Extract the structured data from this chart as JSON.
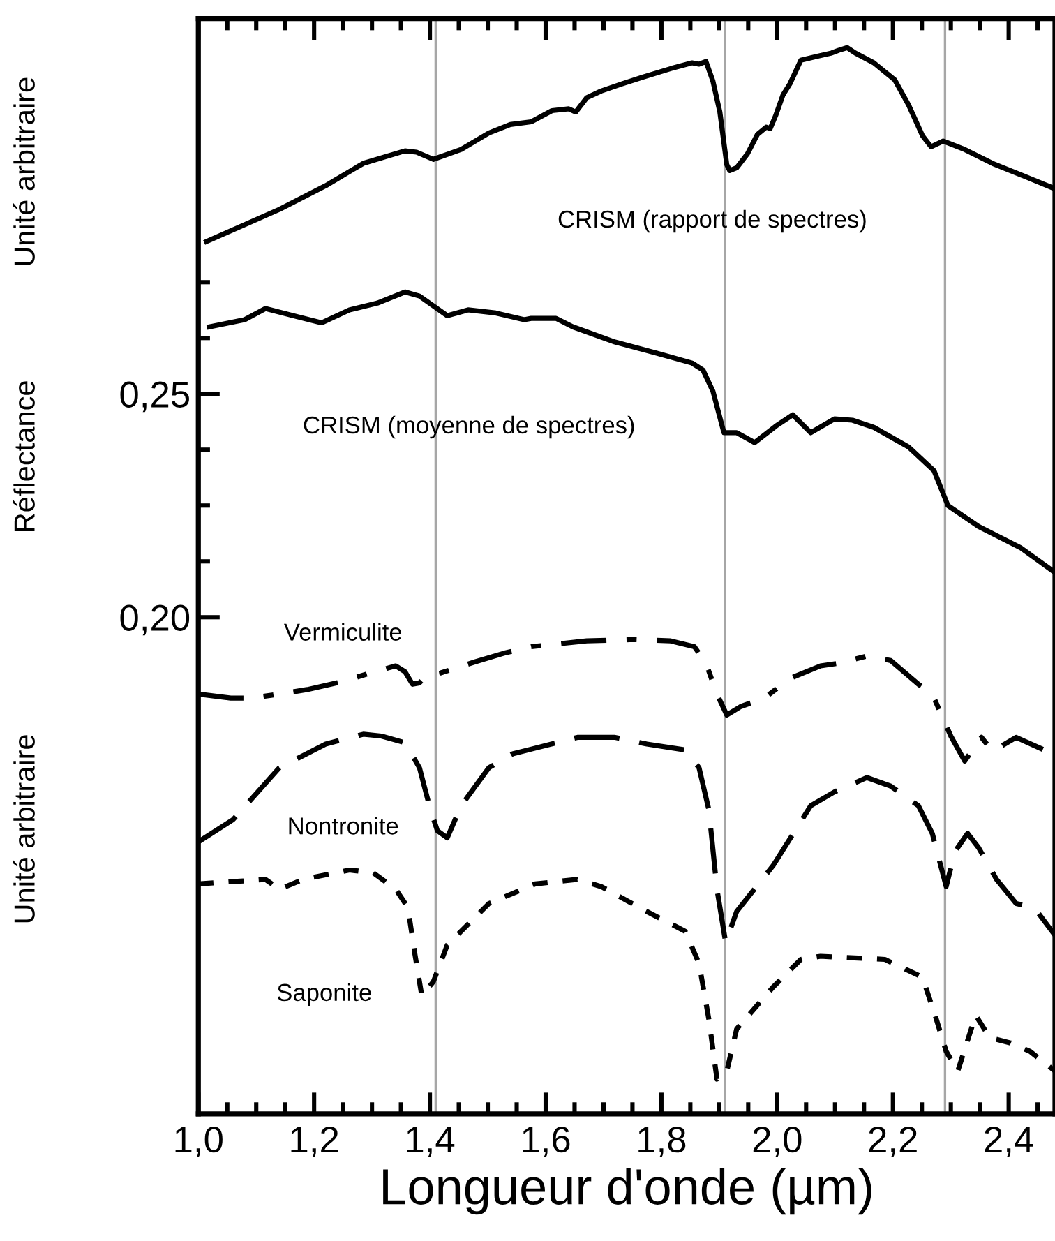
{
  "chart_data": {
    "type": "line",
    "xlabel": "Longueur d'onde (µm)",
    "ylabel": "Réflectance",
    "xlim": [
      1.0,
      2.48
    ],
    "ylim": [
      0.0888,
      0.334
    ],
    "xticks": [
      {
        "value": 1.0,
        "label": "1,0"
      },
      {
        "value": 1.05,
        "label": null
      },
      {
        "value": 1.1,
        "label": null
      },
      {
        "value": 1.15,
        "label": null
      },
      {
        "value": 1.2,
        "label": "1,2"
      },
      {
        "value": 1.25,
        "label": null
      },
      {
        "value": 1.3,
        "label": null
      },
      {
        "value": 1.35,
        "label": null
      },
      {
        "value": 1.4,
        "label": "1,4"
      },
      {
        "value": 1.45,
        "label": null
      },
      {
        "value": 1.5,
        "label": null
      },
      {
        "value": 1.55,
        "label": null
      },
      {
        "value": 1.6,
        "label": "1,6"
      },
      {
        "value": 1.65,
        "label": null
      },
      {
        "value": 1.7,
        "label": null
      },
      {
        "value": 1.75,
        "label": null
      },
      {
        "value": 1.8,
        "label": "1,8"
      },
      {
        "value": 1.85,
        "label": null
      },
      {
        "value": 1.9,
        "label": null
      },
      {
        "value": 1.95,
        "label": null
      },
      {
        "value": 2.0,
        "label": "2,0"
      },
      {
        "value": 2.05,
        "label": null
      },
      {
        "value": 2.1,
        "label": null
      },
      {
        "value": 2.15,
        "label": null
      },
      {
        "value": 2.2,
        "label": "2,2"
      },
      {
        "value": 2.25,
        "label": null
      },
      {
        "value": 2.3,
        "label": null
      },
      {
        "value": 2.35,
        "label": null
      },
      {
        "value": 2.4,
        "label": "2,4"
      },
      {
        "value": 2.45,
        "label": null
      }
    ],
    "yticks": [
      {
        "value": 0.2,
        "label": "0,20"
      },
      {
        "value": 0.2125,
        "label": null
      },
      {
        "value": 0.225,
        "label": null
      },
      {
        "value": 0.2375,
        "label": null
      },
      {
        "value": 0.25,
        "label": "0,25"
      },
      {
        "value": 0.2625,
        "label": null
      },
      {
        "value": 0.275,
        "label": null
      }
    ],
    "grid": false,
    "legend": false,
    "marker": "none",
    "ref_lines": [
      {
        "axis": "x",
        "value": 1.41,
        "color": "#a6a6a6"
      },
      {
        "axis": "x",
        "value": 1.91,
        "color": "#a6a6a6"
      },
      {
        "axis": "x",
        "value": 2.29,
        "color": "#a6a6a6"
      }
    ],
    "series": [
      {
        "name": "CRISM (rapport de spectres)",
        "color": "#000000",
        "line_style": "solid",
        "x": [
          1.014,
          1.14,
          1.22,
          1.285,
          1.357,
          1.377,
          1.406,
          1.454,
          1.502,
          1.539,
          1.575,
          1.611,
          1.64,
          1.652,
          1.671,
          1.696,
          1.732,
          1.768,
          1.816,
          1.853,
          1.865,
          1.877,
          1.889,
          1.901,
          1.913,
          1.918,
          1.93,
          1.949,
          1.966,
          1.981,
          1.988,
          1.998,
          2.01,
          2.022,
          2.041,
          2.07,
          2.094,
          2.106,
          2.121,
          2.135,
          2.167,
          2.203,
          2.227,
          2.251,
          2.266,
          2.287,
          2.324,
          2.372,
          2.42,
          2.48
        ],
        "values": [
          0.2841,
          0.2913,
          0.2966,
          0.3016,
          0.3044,
          0.3041,
          0.3025,
          0.3047,
          0.3084,
          0.3103,
          0.3109,
          0.3134,
          0.3138,
          0.3131,
          0.3163,
          0.3178,
          0.3194,
          0.3209,
          0.3228,
          0.3241,
          0.3238,
          0.3244,
          0.32,
          0.3131,
          0.3013,
          0.3,
          0.3006,
          0.3038,
          0.3081,
          0.3097,
          0.3094,
          0.3125,
          0.3169,
          0.3194,
          0.3247,
          0.3256,
          0.3263,
          0.3269,
          0.3275,
          0.3263,
          0.3241,
          0.3203,
          0.3147,
          0.3078,
          0.3053,
          0.3066,
          0.3047,
          0.3016,
          0.2991,
          0.2959
        ]
      },
      {
        "name": "CRISM (moyenne de spectres)",
        "color": "#000000",
        "line_style": "solid",
        "x": [
          1.019,
          1.08,
          1.116,
          1.164,
          1.213,
          1.261,
          1.309,
          1.357,
          1.382,
          1.43,
          1.466,
          1.514,
          1.563,
          1.575,
          1.618,
          1.647,
          1.72,
          1.792,
          1.853,
          1.872,
          1.889,
          1.908,
          1.93,
          1.961,
          1.998,
          2.027,
          2.058,
          2.099,
          2.13,
          2.167,
          2.227,
          2.271,
          2.295,
          2.348,
          2.42,
          2.48
        ],
        "values": [
          0.265,
          0.2666,
          0.2691,
          0.2675,
          0.2659,
          0.2688,
          0.2703,
          0.2728,
          0.2719,
          0.2675,
          0.2688,
          0.2681,
          0.2666,
          0.2669,
          0.2669,
          0.265,
          0.2616,
          0.2591,
          0.2569,
          0.2553,
          0.2506,
          0.2413,
          0.2413,
          0.2391,
          0.2428,
          0.2453,
          0.2413,
          0.2444,
          0.2441,
          0.2425,
          0.2381,
          0.2328,
          0.225,
          0.2203,
          0.2156,
          0.21
        ]
      },
      {
        "name": "Vermiculite",
        "color": "#000000",
        "line_style": "dashdot",
        "x": [
          1.0,
          1.056,
          1.092,
          1.14,
          1.188,
          1.249,
          1.297,
          1.341,
          1.357,
          1.37,
          1.382,
          1.394,
          1.418,
          1.478,
          1.527,
          1.575,
          1.671,
          1.751,
          1.816,
          1.857,
          1.877,
          1.896,
          1.913,
          1.937,
          1.978,
          2.022,
          2.075,
          2.106,
          2.155,
          2.196,
          2.244,
          2.268,
          2.3,
          2.324,
          2.353,
          2.372,
          2.413,
          2.461,
          2.48
        ],
        "values": [
          0.1828,
          0.1819,
          0.1819,
          0.1828,
          0.1838,
          0.1856,
          0.1875,
          0.1891,
          0.1878,
          0.185,
          0.1853,
          0.1869,
          0.1875,
          0.19,
          0.1919,
          0.1934,
          0.1947,
          0.195,
          0.1947,
          0.1934,
          0.1897,
          0.1828,
          0.1781,
          0.18,
          0.1819,
          0.1863,
          0.1891,
          0.1897,
          0.1913,
          0.1903,
          0.185,
          0.1828,
          0.1734,
          0.1678,
          0.1731,
          0.17,
          0.1731,
          0.1703,
          0.1684
        ]
      },
      {
        "name": "Nontronite",
        "color": "#000000",
        "line_style": "dashed",
        "x": [
          1.0,
          1.06,
          1.14,
          1.22,
          1.285,
          1.316,
          1.357,
          1.382,
          1.401,
          1.413,
          1.43,
          1.454,
          1.502,
          1.543,
          1.655,
          1.72,
          1.775,
          1.841,
          1.865,
          1.882,
          1.896,
          1.911,
          1.93,
          1.993,
          2.058,
          2.099,
          2.155,
          2.196,
          2.244,
          2.268,
          2.292,
          2.307,
          2.329,
          2.348,
          2.379,
          2.413,
          2.444,
          2.48
        ],
        "values": [
          0.1497,
          0.1547,
          0.1663,
          0.1716,
          0.1738,
          0.1734,
          0.1719,
          0.1663,
          0.1569,
          0.1522,
          0.1506,
          0.1578,
          0.1663,
          0.1694,
          0.1731,
          0.1731,
          0.1716,
          0.1703,
          0.1663,
          0.1569,
          0.1391,
          0.1272,
          0.1341,
          0.1444,
          0.1578,
          0.1609,
          0.1641,
          0.1622,
          0.1578,
          0.1516,
          0.1397,
          0.1475,
          0.1516,
          0.1484,
          0.1413,
          0.1359,
          0.135,
          0.1288
        ]
      },
      {
        "name": "Saponite",
        "color": "#000000",
        "line_style": "dotted",
        "x": [
          1.0,
          1.116,
          1.14,
          1.181,
          1.261,
          1.302,
          1.341,
          1.362,
          1.374,
          1.386,
          1.406,
          1.43,
          1.502,
          1.582,
          1.655,
          1.696,
          1.775,
          1.841,
          1.865,
          1.882,
          1.896,
          1.913,
          1.93,
          1.993,
          2.041,
          2.075,
          2.186,
          2.251,
          2.275,
          2.292,
          2.312,
          2.343,
          2.367,
          2.403,
          2.437,
          2.48
        ],
        "values": [
          0.1403,
          0.1413,
          0.1391,
          0.1413,
          0.1434,
          0.1428,
          0.1391,
          0.135,
          0.1247,
          0.1153,
          0.1184,
          0.1266,
          0.1359,
          0.1403,
          0.1413,
          0.1397,
          0.1341,
          0.1297,
          0.1225,
          0.11,
          0.0966,
          0.0984,
          0.1078,
          0.1172,
          0.1234,
          0.1241,
          0.1234,
          0.1194,
          0.11,
          0.1028,
          0.0984,
          0.1109,
          0.1059,
          0.1047,
          0.1028,
          0.0984
        ]
      }
    ],
    "annotations": [
      "Unité arbitraire",
      "Unité arbitraire"
    ]
  }
}
